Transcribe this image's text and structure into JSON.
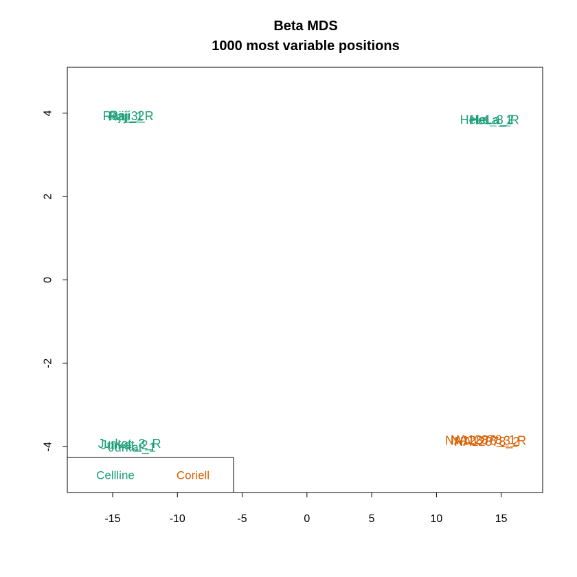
{
  "chart_data": {
    "type": "scatter",
    "title": "Beta MDS",
    "subtitle": "1000 most variable positions",
    "xlabel": "",
    "ylabel": "",
    "xlim": [
      -18.5,
      18.2
    ],
    "ylim": [
      -5.1,
      5.1
    ],
    "xticks": [
      -15,
      -10,
      -5,
      0,
      5,
      10,
      15
    ],
    "yticks": [
      -4,
      -2,
      0,
      2,
      4
    ],
    "grid": false,
    "colors": {
      "Cellline": "#1B9E77",
      "Coriell": "#D95F02"
    },
    "points": [
      {
        "label": "Raji_1",
        "x": -14.0,
        "y": 3.92,
        "group": "Cellline"
      },
      {
        "label": "Raji_2",
        "x": -13.9,
        "y": 3.94,
        "group": "Cellline"
      },
      {
        "label": "Raji_3_R",
        "x": -13.8,
        "y": 3.93,
        "group": "Cellline"
      },
      {
        "label": "HeLa_1",
        "x": 14.2,
        "y": 3.83,
        "group": "Cellline"
      },
      {
        "label": "HeLa_2",
        "x": 14.3,
        "y": 3.85,
        "group": "Cellline"
      },
      {
        "label": "HeLa_3_R",
        "x": 14.1,
        "y": 3.84,
        "group": "Cellline"
      },
      {
        "label": "Jurkat_1",
        "x": -13.5,
        "y": -4.02,
        "group": "Cellline"
      },
      {
        "label": "Jurkat_2",
        "x": -14.1,
        "y": -3.96,
        "group": "Cellline"
      },
      {
        "label": "Jurkat_3_R",
        "x": -13.7,
        "y": -3.93,
        "group": "Cellline"
      },
      {
        "label": "NA12878_1",
        "x": 13.6,
        "y": -3.84,
        "group": "Coriell"
      },
      {
        "label": "NA12878_2",
        "x": 13.9,
        "y": -3.88,
        "group": "Coriell"
      },
      {
        "label": "NA12878_3_R",
        "x": 13.8,
        "y": -3.86,
        "group": "Coriell"
      }
    ],
    "legend": {
      "position": "bottom-left",
      "entries": [
        {
          "label": "Cellline",
          "color": "#1B9E77"
        },
        {
          "label": "Coriell",
          "color": "#D95F02"
        }
      ]
    }
  }
}
